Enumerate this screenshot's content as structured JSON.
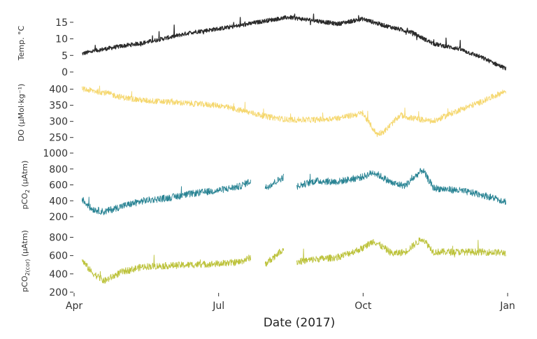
{
  "chart_data": {
    "type": "line",
    "xlabel": "Date (2017)",
    "x_ticks": [
      "Apr",
      "Jul",
      "Oct",
      "Jan"
    ],
    "x_range": [
      "2017-04-01",
      "2018-01-01"
    ],
    "grid": false,
    "legend": "none",
    "panels": [
      {
        "id": "temp",
        "ylabel": {
          "main": "Temp. °C",
          "sub": "",
          "tail": ""
        },
        "color": "#2b2b2b",
        "ylim": [
          0,
          17.5
        ],
        "yticks": [
          0,
          5,
          10,
          15
        ],
        "series": {
          "gaps": [],
          "points": [
            [
              "2017-04-06",
              5.5
            ],
            [
              "2017-04-15",
              6.5
            ],
            [
              "2017-05-01",
              7.8
            ],
            [
              "2017-05-15",
              8.8
            ],
            [
              "2017-06-01",
              10.5
            ],
            [
              "2017-06-15",
              12.0
            ],
            [
              "2017-07-01",
              13.0
            ],
            [
              "2017-07-15",
              14.0
            ],
            [
              "2017-08-01",
              15.5
            ],
            [
              "2017-08-15",
              16.5
            ],
            [
              "2017-09-01",
              15.5
            ],
            [
              "2017-09-15",
              14.5
            ],
            [
              "2017-10-01",
              16.0
            ],
            [
              "2017-10-15",
              14.0
            ],
            [
              "2017-11-01",
              12.0
            ],
            [
              "2017-11-15",
              8.5
            ],
            [
              "2017-12-01",
              7.0
            ],
            [
              "2017-12-15",
              4.5
            ],
            [
              "2017-12-31",
              1.0
            ]
          ]
        }
      },
      {
        "id": "do",
        "ylabel": {
          "main": "DO (µMol·kg",
          "sub": "",
          "tail": "⁻¹)"
        },
        "color": "#f5d76e",
        "ylim": [
          245,
          410
        ],
        "yticks": [
          250,
          300,
          350,
          400
        ],
        "series": {
          "gaps": [],
          "points": [
            [
              "2017-04-06",
              400
            ],
            [
              "2017-04-20",
              390
            ],
            [
              "2017-05-01",
              375
            ],
            [
              "2017-05-15",
              365
            ],
            [
              "2017-06-01",
              360
            ],
            [
              "2017-06-15",
              355
            ],
            [
              "2017-07-01",
              350
            ],
            [
              "2017-07-15",
              335
            ],
            [
              "2017-08-01",
              315
            ],
            [
              "2017-08-15",
              305
            ],
            [
              "2017-09-01",
              305
            ],
            [
              "2017-09-15",
              310
            ],
            [
              "2017-10-01",
              325
            ],
            [
              "2017-10-10",
              260
            ],
            [
              "2017-10-15",
              270
            ],
            [
              "2017-10-25",
              320
            ],
            [
              "2017-11-01",
              310
            ],
            [
              "2017-11-15",
              300
            ],
            [
              "2017-12-01",
              335
            ],
            [
              "2017-12-15",
              360
            ],
            [
              "2017-12-31",
              395
            ]
          ]
        }
      },
      {
        "id": "pco2",
        "ylabel": {
          "main": "pCO",
          "sub": "2",
          "tail": " (µAtm)"
        },
        "color": "#2a8494",
        "ylim": [
          200,
          1000
        ],
        "yticks": [
          200,
          400,
          600,
          800,
          1000
        ],
        "series": {
          "gaps": [
            [
              "2017-07-22",
              "2017-07-31"
            ],
            [
              "2017-08-12",
              "2017-08-20"
            ]
          ],
          "points": [
            [
              "2017-04-06",
              420
            ],
            [
              "2017-04-12",
              300
            ],
            [
              "2017-04-20",
              260
            ],
            [
              "2017-05-01",
              330
            ],
            [
              "2017-05-15",
              400
            ],
            [
              "2017-06-01",
              440
            ],
            [
              "2017-06-15",
              490
            ],
            [
              "2017-07-01",
              530
            ],
            [
              "2017-07-15",
              580
            ],
            [
              "2017-07-22",
              650
            ],
            [
              "2017-07-31",
              560
            ],
            [
              "2017-08-12",
              700
            ],
            [
              "2017-08-20",
              580
            ],
            [
              "2017-09-01",
              650
            ],
            [
              "2017-09-15",
              640
            ],
            [
              "2017-10-01",
              700
            ],
            [
              "2017-10-08",
              760
            ],
            [
              "2017-10-20",
              620
            ],
            [
              "2017-10-28",
              590
            ],
            [
              "2017-11-08",
              790
            ],
            [
              "2017-11-15",
              560
            ],
            [
              "2017-12-01",
              530
            ],
            [
              "2017-12-15",
              480
            ],
            [
              "2017-12-31",
              390
            ]
          ]
        }
      },
      {
        "id": "pco2cor",
        "ylabel": {
          "main": "pCO",
          "sub": "2(cor)",
          "tail": " (µAtm)"
        },
        "color": "#bcc23a",
        "ylim": [
          200,
          880
        ],
        "yticks": [
          200,
          400,
          600,
          800
        ],
        "series": {
          "gaps": [
            [
              "2017-07-22",
              "2017-07-31"
            ],
            [
              "2017-08-12",
              "2017-08-20"
            ]
          ],
          "points": [
            [
              "2017-04-06",
              550
            ],
            [
              "2017-04-12",
              420
            ],
            [
              "2017-04-20",
              320
            ],
            [
              "2017-05-01",
              420
            ],
            [
              "2017-05-15",
              480
            ],
            [
              "2017-06-01",
              490
            ],
            [
              "2017-06-15",
              500
            ],
            [
              "2017-07-01",
              510
            ],
            [
              "2017-07-15",
              530
            ],
            [
              "2017-07-22",
              580
            ],
            [
              "2017-07-31",
              500
            ],
            [
              "2017-08-12",
              680
            ],
            [
              "2017-08-20",
              530
            ],
            [
              "2017-09-01",
              560
            ],
            [
              "2017-09-15",
              580
            ],
            [
              "2017-10-01",
              680
            ],
            [
              "2017-10-08",
              760
            ],
            [
              "2017-10-20",
              620
            ],
            [
              "2017-10-28",
              640
            ],
            [
              "2017-11-08",
              790
            ],
            [
              "2017-11-15",
              640
            ],
            [
              "2017-12-01",
              640
            ],
            [
              "2017-12-15",
              640
            ],
            [
              "2017-12-31",
              630
            ]
          ]
        }
      }
    ]
  }
}
